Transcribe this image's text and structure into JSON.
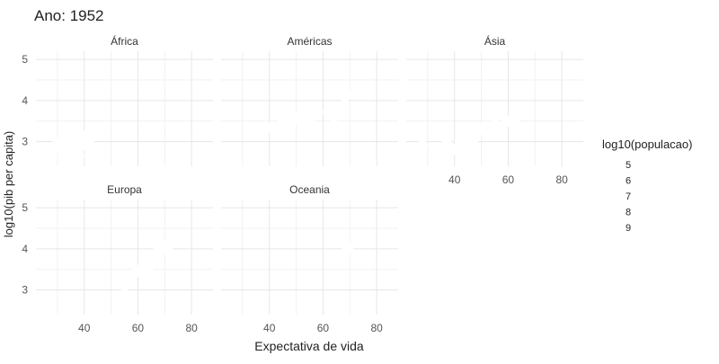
{
  "chart_data": {
    "type": "scatter",
    "title": "Ano: 1952",
    "xlabel": "Expectativa de vida",
    "ylabel": "log10(pib per capita)",
    "xlim": [
      22,
      88
    ],
    "ylim": [
      2.4,
      5.2
    ],
    "xticks": [
      40,
      60,
      80
    ],
    "yticks": [
      3,
      4,
      5
    ],
    "grid": true,
    "point_color": "#ffffff",
    "legend": {
      "title": "log10(populacao)",
      "placement": "right",
      "entries": [
        "5",
        "6",
        "7",
        "8",
        "9"
      ]
    },
    "facets": [
      {
        "label": "África",
        "points": [
          {
            "x": 28,
            "y": 2.75
          },
          {
            "x": 30,
            "y": 2.95
          },
          {
            "x": 31,
            "y": 2.85
          },
          {
            "x": 32,
            "y": 3.05
          },
          {
            "x": 33,
            "y": 2.7
          },
          {
            "x": 34,
            "y": 2.9
          },
          {
            "x": 35,
            "y": 3.1
          },
          {
            "x": 36,
            "y": 2.8
          },
          {
            "x": 37,
            "y": 3.0
          },
          {
            "x": 38,
            "y": 2.65
          },
          {
            "x": 39,
            "y": 2.9
          },
          {
            "x": 40,
            "y": 3.15
          },
          {
            "x": 41,
            "y": 2.95
          },
          {
            "x": 42,
            "y": 3.05
          },
          {
            "x": 43,
            "y": 2.85
          },
          {
            "x": 45,
            "y": 3.3
          },
          {
            "x": 47,
            "y": 3.2
          }
        ]
      },
      {
        "label": "Américas",
        "points": [
          {
            "x": 37,
            "y": 3.2
          },
          {
            "x": 40,
            "y": 3.35
          },
          {
            "x": 42,
            "y": 3.3
          },
          {
            "x": 45,
            "y": 3.5
          },
          {
            "x": 48,
            "y": 3.45
          },
          {
            "x": 50,
            "y": 3.55
          },
          {
            "x": 53,
            "y": 3.6
          },
          {
            "x": 55,
            "y": 3.5
          },
          {
            "x": 58,
            "y": 3.7
          },
          {
            "x": 62,
            "y": 3.75
          },
          {
            "x": 64,
            "y": 3.6
          },
          {
            "x": 68,
            "y": 4.1
          },
          {
            "x": 69,
            "y": 4.15
          }
        ]
      },
      {
        "label": "Ásia",
        "points": [
          {
            "x": 28,
            "y": 2.9
          },
          {
            "x": 35,
            "y": 2.7
          },
          {
            "x": 37,
            "y": 2.95
          },
          {
            "x": 40,
            "y": 2.8
          },
          {
            "x": 42,
            "y": 3.0
          },
          {
            "x": 44,
            "y": 3.1
          },
          {
            "x": 45,
            "y": 2.85
          },
          {
            "x": 47,
            "y": 3.05
          },
          {
            "x": 50,
            "y": 3.3
          },
          {
            "x": 52,
            "y": 3.2
          },
          {
            "x": 55,
            "y": 3.4
          },
          {
            "x": 60,
            "y": 3.5
          },
          {
            "x": 63,
            "y": 3.4
          }
        ]
      },
      {
        "label": "Europa",
        "points": [
          {
            "x": 55,
            "y": 3.1
          },
          {
            "x": 58,
            "y": 3.35
          },
          {
            "x": 60,
            "y": 3.45
          },
          {
            "x": 62,
            "y": 3.6
          },
          {
            "x": 64,
            "y": 3.55
          },
          {
            "x": 65,
            "y": 3.75
          },
          {
            "x": 66,
            "y": 3.8
          },
          {
            "x": 67,
            "y": 3.9
          },
          {
            "x": 68,
            "y": 4.0
          },
          {
            "x": 69,
            "y": 4.05
          },
          {
            "x": 70,
            "y": 4.1
          },
          {
            "x": 71,
            "y": 4.0
          },
          {
            "x": 72,
            "y": 4.15
          }
        ]
      },
      {
        "label": "Oceania",
        "points": [
          {
            "x": 69,
            "y": 4.0
          },
          {
            "x": 69.5,
            "y": 4.05
          }
        ]
      }
    ]
  }
}
